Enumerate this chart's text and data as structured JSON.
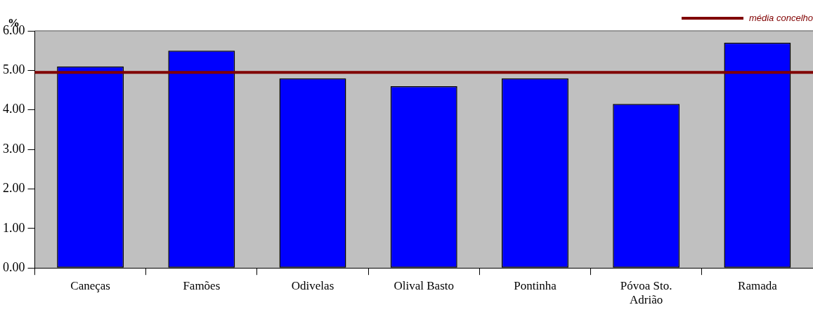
{
  "chart_data": {
    "type": "bar",
    "ylabel": "%",
    "categories": [
      "Caneças",
      "Famões",
      "Odivelas",
      "Olival Basto",
      "Pontinha",
      "Póvoa Sto. Adrião",
      "Ramada"
    ],
    "series": [
      {
        "color": "#0000ff",
        "values": [
          5.1,
          5.5,
          4.8,
          4.6,
          4.8,
          4.15,
          5.7
        ]
      }
    ],
    "ylim": [
      0,
      6
    ],
    "yticks": [
      {
        "value": 0,
        "label": "0.00"
      },
      {
        "value": 1,
        "label": "1.00"
      },
      {
        "value": 2,
        "label": "2.00"
      },
      {
        "value": 3,
        "label": "3.00"
      },
      {
        "value": 4,
        "label": "4.00"
      },
      {
        "value": 5,
        "label": "5.00"
      },
      {
        "value": 6,
        "label": "6.00"
      }
    ],
    "ref_lines": [
      {
        "axis": "y",
        "value": 4.95,
        "label": "média concelho",
        "color": "#800000"
      }
    ],
    "grid": false,
    "legend": "top right"
  }
}
